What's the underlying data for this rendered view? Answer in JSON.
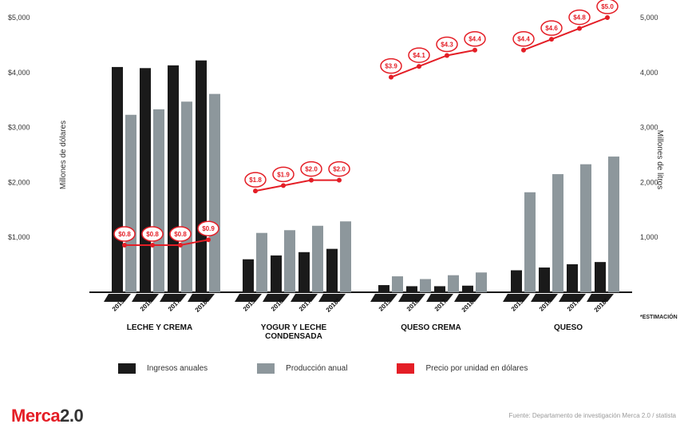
{
  "chart_data": {
    "type": "bar",
    "groups": [
      "LECHE Y CREMA",
      "YOGUR Y LECHE CONDENSADA",
      "QUESO CREMA",
      "QUESO"
    ],
    "years": [
      "2015",
      "2016",
      "2017",
      "2018*"
    ],
    "ylabel_left": "Millones de dólares",
    "ylabel_right": "Millones de litros",
    "yticks_left": [
      "$5,000",
      "$4,000",
      "$3,000",
      "$2,000",
      "$1,000"
    ],
    "yticks_right": [
      "5,000",
      "4,000",
      "3,000",
      "2,000",
      "1,000"
    ],
    "ylim": [
      0,
      5000
    ],
    "series": [
      {
        "name": "Ingresos anuales",
        "color": "#1a1a1a",
        "values": [
          [
            4100,
            4080,
            4130,
            4220
          ],
          [
            600,
            670,
            730,
            790
          ],
          [
            130,
            110,
            110,
            120
          ],
          [
            400,
            450,
            510,
            550
          ]
        ]
      },
      {
        "name": "Producción anual",
        "color": "#8d979c",
        "values": [
          [
            3230,
            3330,
            3470,
            3610
          ],
          [
            1080,
            1130,
            1210,
            1290
          ],
          [
            290,
            240,
            310,
            360
          ],
          [
            1820,
            2150,
            2330,
            2470
          ]
        ]
      },
      {
        "name": "Precio por unidad en dólares",
        "color": "#e41e26",
        "labels": [
          [
            "$0.8",
            "$0.8",
            "$0.8",
            "$0.9"
          ],
          [
            "$1.8",
            "$1.9",
            "$2.0",
            "$2.0"
          ],
          [
            "$3.9",
            "$4.1",
            "$4.3",
            "$4.4"
          ],
          [
            "$4.4",
            "$4.6",
            "$4.8",
            "$5.0"
          ]
        ],
        "values": [
          [
            0.8,
            0.8,
            0.8,
            0.9
          ],
          [
            1.8,
            1.9,
            2.0,
            2.0
          ],
          [
            3.9,
            4.1,
            4.3,
            4.4
          ],
          [
            4.4,
            4.6,
            4.8,
            5.0
          ]
        ]
      }
    ],
    "grid": false,
    "legend_position": "bottom"
  },
  "footnote": "*ESTIMACIÓN",
  "source": "Fuente: Departamento de investigación Merca 2.0 / statista",
  "brand": {
    "name_red": "Merca",
    "name_dark": "2.0"
  }
}
